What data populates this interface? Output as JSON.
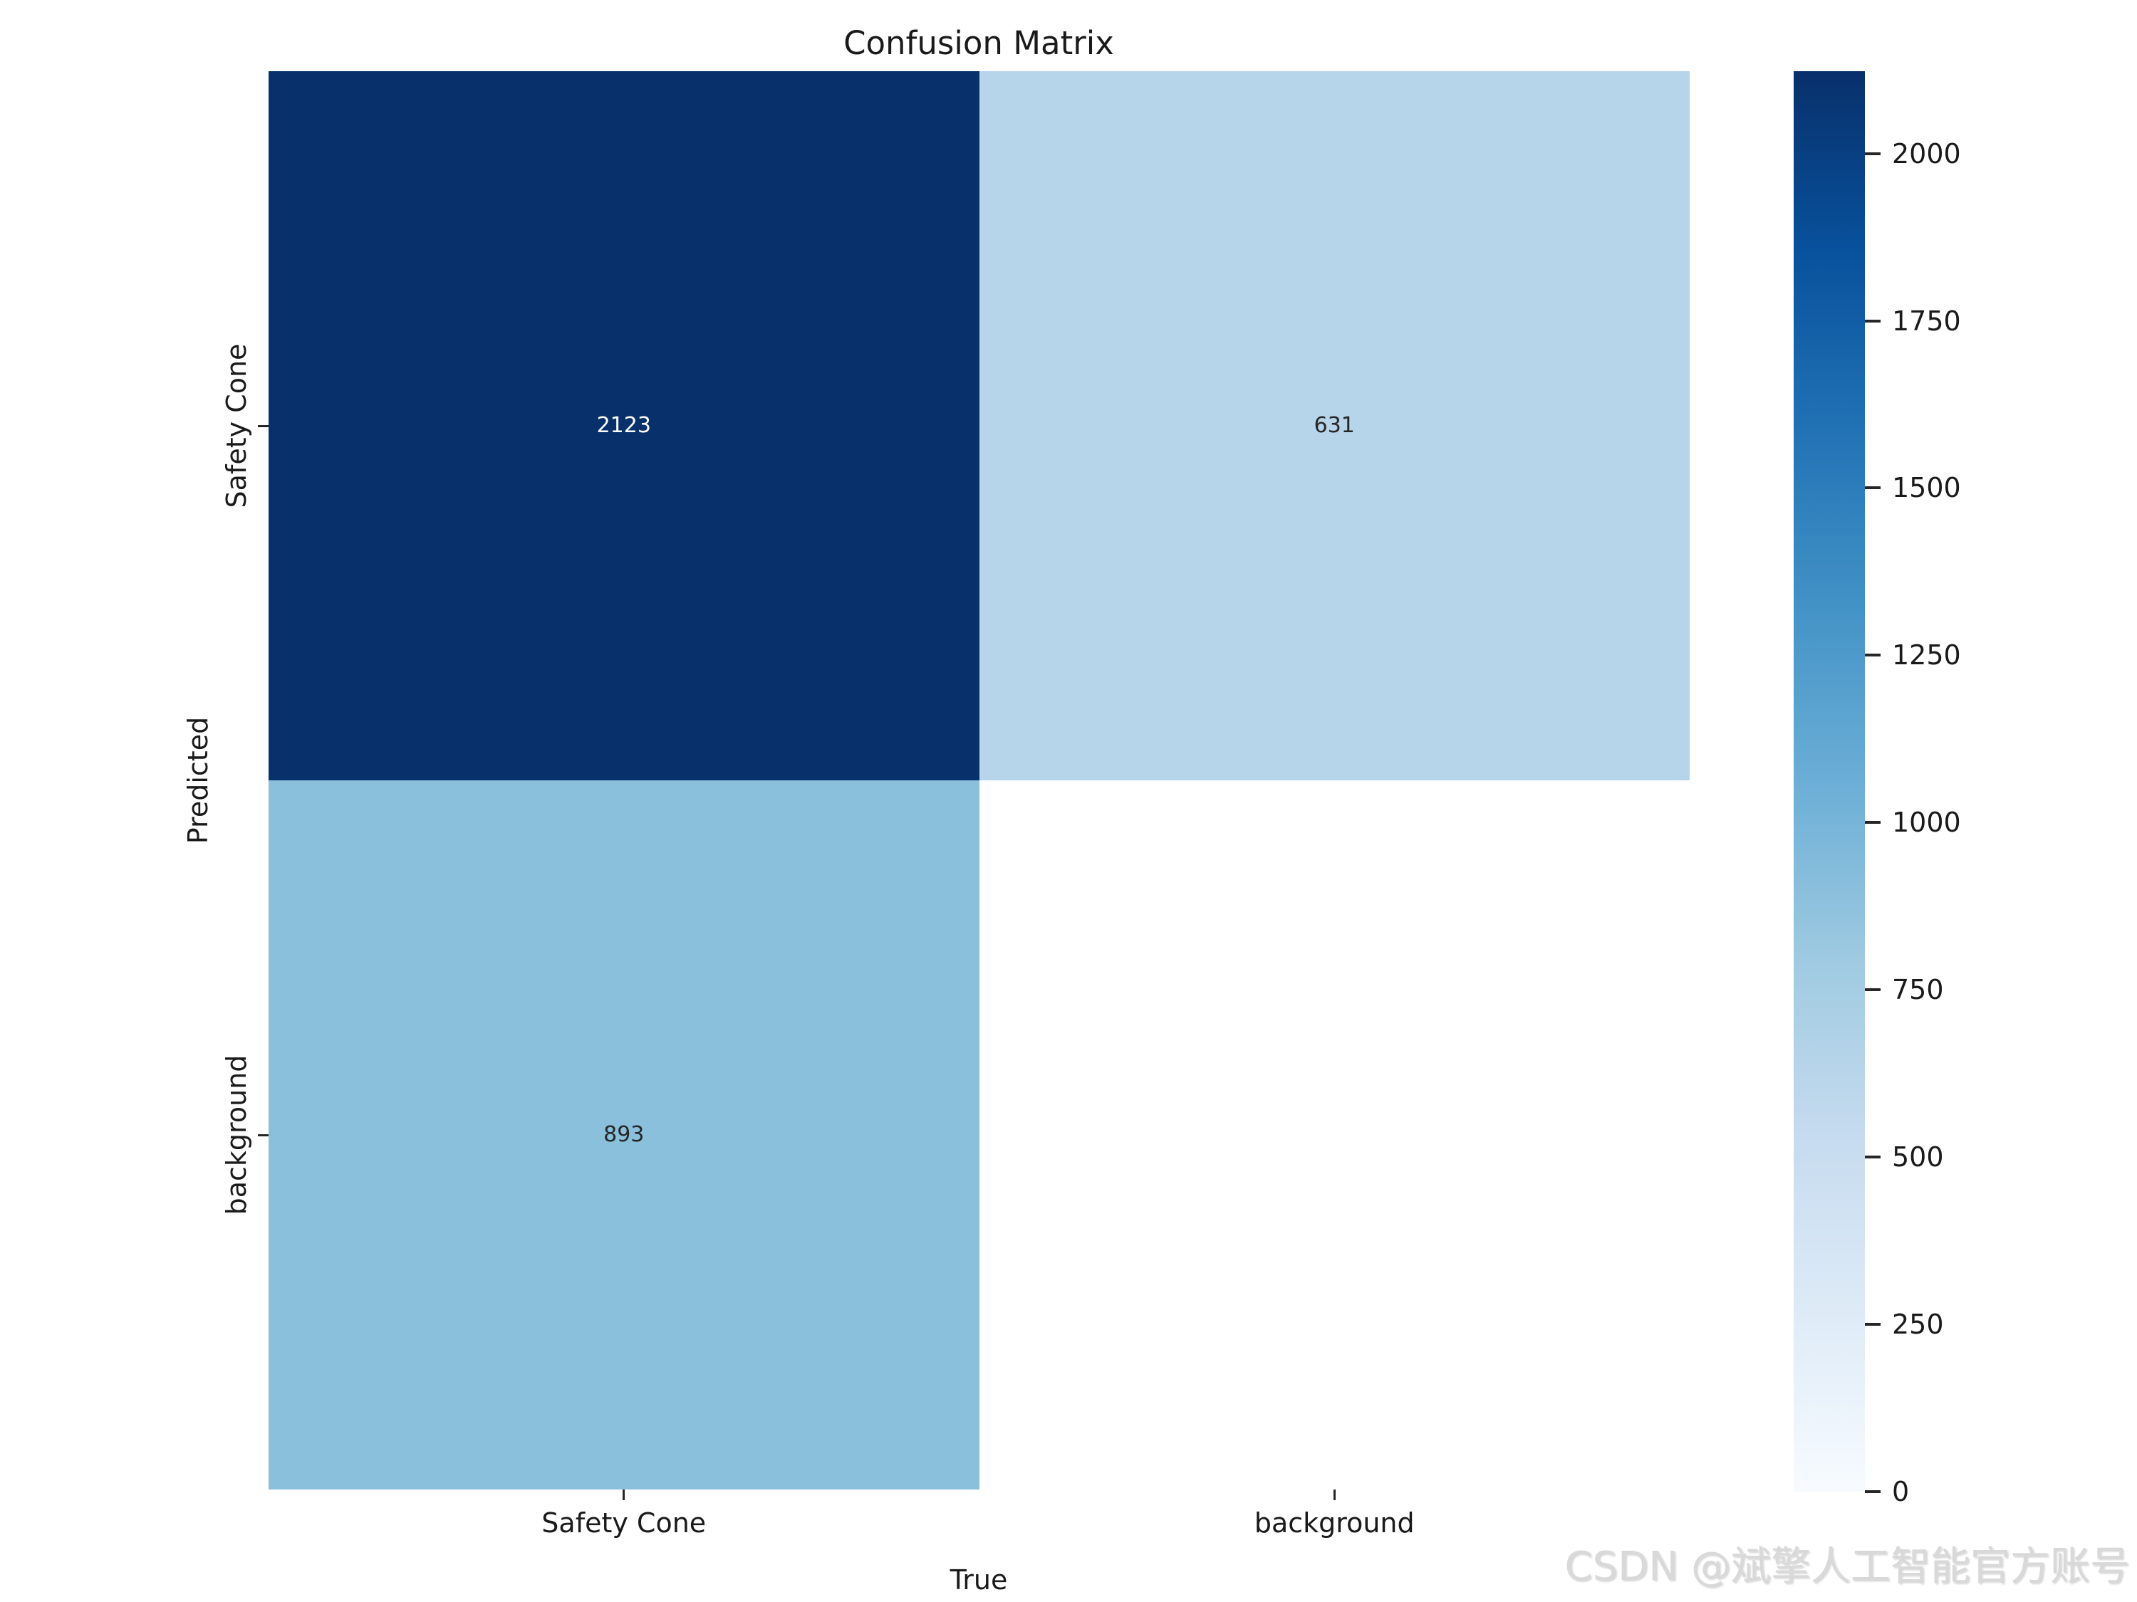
{
  "title": "Confusion Matrix",
  "watermark": "CSDN @斌擎人工智能官方账号",
  "colors": {
    "background": "#ffffff",
    "tick": "#262626",
    "label_text": "#1a1a1a",
    "annotation_on_dark": "#ffffff",
    "annotation_on_light": "#262626",
    "watermark": "#d9d9d9"
  },
  "chart_data": {
    "type": "heatmap",
    "title": "Confusion Matrix",
    "xlabel": "True",
    "ylabel": "Predicted",
    "x_categories": [
      "Safety Cone",
      "background"
    ],
    "y_categories": [
      "Safety Cone",
      "background"
    ],
    "rows": [
      [
        {
          "value": 2123,
          "label": "2123",
          "color": "#08306b",
          "text_color": "#ffffff"
        },
        {
          "value": 631,
          "label": "631",
          "color": "#b7d5ea",
          "text_color": "#262626"
        }
      ],
      [
        {
          "value": 893,
          "label": "893",
          "color": "#8bc0dd",
          "text_color": "#262626"
        },
        {
          "value": null,
          "label": "",
          "color": "#ffffff",
          "text_color": "#262626"
        }
      ]
    ],
    "colorbar": {
      "vmin": 0,
      "vmax": 2123,
      "ticks": [
        0,
        250,
        500,
        750,
        1000,
        1250,
        1500,
        1750,
        2000
      ],
      "colormap": "Blues",
      "gradient_top_to_bottom": [
        "#08306b",
        "#08519c",
        "#2171b5",
        "#4292c6",
        "#6baed6",
        "#9ecae1",
        "#c6dbef",
        "#deebf7",
        "#f7fbff"
      ],
      "position": "right"
    },
    "grid": false,
    "annotations_shown": true,
    "note_empty_cell": "bottom-right (Predicted background / True background) cell is blank white with no value"
  }
}
